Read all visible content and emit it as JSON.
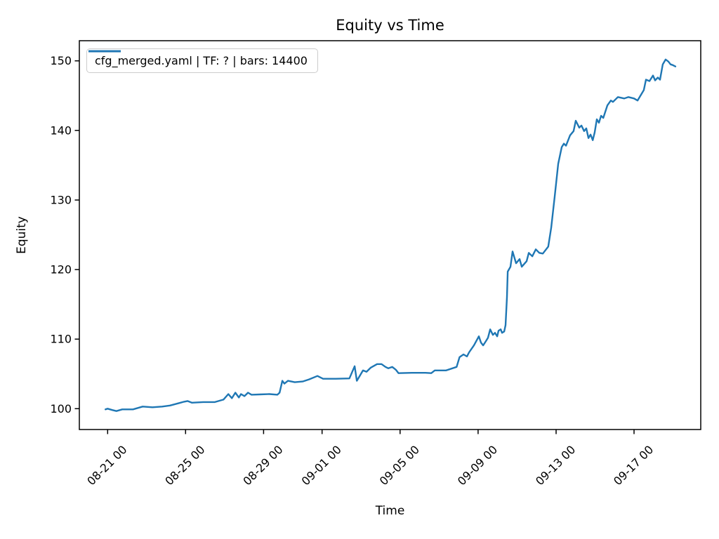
{
  "figure": {
    "title": "Equity vs Time",
    "xlabel": "Time",
    "ylabel": "Equity"
  },
  "legend": {
    "label": "cfg_merged.yaml | TF: ? | bars: 14400"
  },
  "colors": {
    "line": "#1f77b4",
    "text": "#000000",
    "spine": "#000000",
    "legend_border": "#cccccc"
  },
  "chart_data": {
    "type": "line",
    "title": "Equity vs Time",
    "xlabel": "Time",
    "ylabel": "Equity",
    "grid": false,
    "legend_position": "upper left",
    "x_axis": {
      "kind": "datetime",
      "unit": "days since 08-21 00:00 (year not shown)",
      "tick_days": [
        0,
        4,
        8,
        11,
        15,
        19,
        23,
        27
      ],
      "tick_labels": [
        "08-21 00",
        "08-25 00",
        "08-29 00",
        "09-01 00",
        "09-05 00",
        "09-09 00",
        "09-13 00",
        "09-17 00"
      ],
      "tick_rotation_deg": 45,
      "limits_days": [
        -1.45,
        30.42
      ]
    },
    "y_axis": {
      "ticks": [
        100,
        110,
        120,
        130,
        140,
        150
      ],
      "limits": [
        97.0,
        152.9
      ]
    },
    "series": [
      {
        "name": "cfg_merged.yaml | TF: ? | bars: 14400",
        "color": "#1f77b4",
        "line_width": 2.4,
        "points_day_value": [
          [
            -0.11,
            99.9
          ],
          [
            0.0,
            100.0
          ],
          [
            0.25,
            99.8
          ],
          [
            0.45,
            99.65
          ],
          [
            0.75,
            99.9
          ],
          [
            1.3,
            99.9
          ],
          [
            1.8,
            100.3
          ],
          [
            2.3,
            100.2
          ],
          [
            2.8,
            100.3
          ],
          [
            3.2,
            100.45
          ],
          [
            3.67,
            100.8
          ],
          [
            3.92,
            101.0
          ],
          [
            4.1,
            101.1
          ],
          [
            4.32,
            100.85
          ],
          [
            4.9,
            100.95
          ],
          [
            5.5,
            100.95
          ],
          [
            5.94,
            101.3
          ],
          [
            6.19,
            102.1
          ],
          [
            6.37,
            101.5
          ],
          [
            6.55,
            102.3
          ],
          [
            6.73,
            101.6
          ],
          [
            6.84,
            102.1
          ],
          [
            7.02,
            101.8
          ],
          [
            7.2,
            102.3
          ],
          [
            7.38,
            102.0
          ],
          [
            7.8,
            102.05
          ],
          [
            8.3,
            102.1
          ],
          [
            8.71,
            102.0
          ],
          [
            8.82,
            102.3
          ],
          [
            8.96,
            104.0
          ],
          [
            9.07,
            103.6
          ],
          [
            9.25,
            104.0
          ],
          [
            9.6,
            103.8
          ],
          [
            10.0,
            103.9
          ],
          [
            10.33,
            104.2
          ],
          [
            10.76,
            104.7
          ],
          [
            11.05,
            104.3
          ],
          [
            11.7,
            104.3
          ],
          [
            12.4,
            104.35
          ],
          [
            12.67,
            106.1
          ],
          [
            12.78,
            104.0
          ],
          [
            13.1,
            105.5
          ],
          [
            13.28,
            105.3
          ],
          [
            13.5,
            105.9
          ],
          [
            13.82,
            106.4
          ],
          [
            14.05,
            106.4
          ],
          [
            14.25,
            106.0
          ],
          [
            14.4,
            105.8
          ],
          [
            14.6,
            106.0
          ],
          [
            14.78,
            105.6
          ],
          [
            14.92,
            105.1
          ],
          [
            15.6,
            105.15
          ],
          [
            16.3,
            105.15
          ],
          [
            16.6,
            105.1
          ],
          [
            16.78,
            105.5
          ],
          [
            17.35,
            105.5
          ],
          [
            17.9,
            106.0
          ],
          [
            18.05,
            107.4
          ],
          [
            18.25,
            107.8
          ],
          [
            18.43,
            107.5
          ],
          [
            18.54,
            108.1
          ],
          [
            18.79,
            109.1
          ],
          [
            19.04,
            110.4
          ],
          [
            19.15,
            109.5
          ],
          [
            19.26,
            109.1
          ],
          [
            19.4,
            109.7
          ],
          [
            19.51,
            110.2
          ],
          [
            19.62,
            111.4
          ],
          [
            19.76,
            110.6
          ],
          [
            19.87,
            110.9
          ],
          [
            19.98,
            110.4
          ],
          [
            20.05,
            111.2
          ],
          [
            20.16,
            111.4
          ],
          [
            20.23,
            110.9
          ],
          [
            20.34,
            111.1
          ],
          [
            20.41,
            112.0
          ],
          [
            20.48,
            116.0
          ],
          [
            20.52,
            119.7
          ],
          [
            20.66,
            120.4
          ],
          [
            20.77,
            122.6
          ],
          [
            20.95,
            120.9
          ],
          [
            21.13,
            121.5
          ],
          [
            21.24,
            120.4
          ],
          [
            21.49,
            121.2
          ],
          [
            21.6,
            122.4
          ],
          [
            21.78,
            121.9
          ],
          [
            21.96,
            122.9
          ],
          [
            22.14,
            122.4
          ],
          [
            22.32,
            122.3
          ],
          [
            22.6,
            123.3
          ],
          [
            22.75,
            126.0
          ],
          [
            22.93,
            130.5
          ],
          [
            23.11,
            135.2
          ],
          [
            23.29,
            137.6
          ],
          [
            23.4,
            138.1
          ],
          [
            23.51,
            137.8
          ],
          [
            23.72,
            139.3
          ],
          [
            23.9,
            139.9
          ],
          [
            24.01,
            141.4
          ],
          [
            24.19,
            140.4
          ],
          [
            24.3,
            140.7
          ],
          [
            24.44,
            139.9
          ],
          [
            24.55,
            140.3
          ],
          [
            24.66,
            138.9
          ],
          [
            24.77,
            139.4
          ],
          [
            24.88,
            138.6
          ],
          [
            24.98,
            139.7
          ],
          [
            25.09,
            141.6
          ],
          [
            25.2,
            141.1
          ],
          [
            25.31,
            142.1
          ],
          [
            25.42,
            141.8
          ],
          [
            25.63,
            143.6
          ],
          [
            25.81,
            144.3
          ],
          [
            25.92,
            144.1
          ],
          [
            26.17,
            144.8
          ],
          [
            26.5,
            144.6
          ],
          [
            26.71,
            144.8
          ],
          [
            27.0,
            144.6
          ],
          [
            27.18,
            144.3
          ],
          [
            27.5,
            145.8
          ],
          [
            27.61,
            147.3
          ],
          [
            27.79,
            147.1
          ],
          [
            27.97,
            147.9
          ],
          [
            28.08,
            147.2
          ],
          [
            28.22,
            147.6
          ],
          [
            28.33,
            147.3
          ],
          [
            28.47,
            149.5
          ],
          [
            28.62,
            150.2
          ],
          [
            28.76,
            149.9
          ],
          [
            28.87,
            149.5
          ],
          [
            28.98,
            149.4
          ],
          [
            29.12,
            149.2
          ]
        ]
      }
    ]
  }
}
